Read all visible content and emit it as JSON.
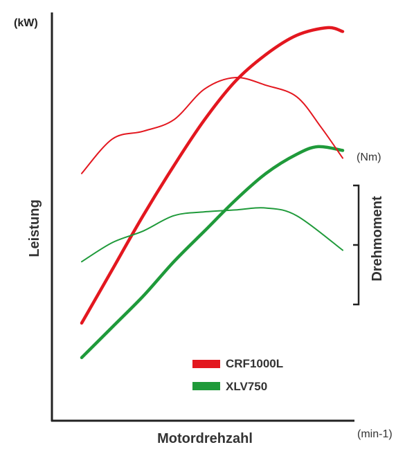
{
  "chart_data": {
    "type": "line",
    "x_axis": {
      "label": "Motordrehzahl",
      "unit": "(min-1)"
    },
    "y_axis_left": {
      "label": "Leistung",
      "unit": "(kW)"
    },
    "y_axis_right": {
      "label": "Drehmoment",
      "unit": "(Nm)"
    },
    "grid": false,
    "ticks": false,
    "legend": {
      "placement": "bottom-right",
      "entries": [
        {
          "name": "CRF1000L",
          "color": "#e3171f"
        },
        {
          "name": "XLV750",
          "color": "#1f9a3a"
        }
      ]
    },
    "series": [
      {
        "name": "CRF1000L",
        "metric": "Leistung",
        "color": "#e3171f",
        "points": [
          [
            0,
            24
          ],
          [
            10,
            38
          ],
          [
            20,
            52
          ],
          [
            30,
            65
          ],
          [
            40,
            77
          ],
          [
            50,
            87
          ],
          [
            60,
            94
          ],
          [
            70,
            99
          ],
          [
            80,
            101
          ],
          [
            85,
            100
          ]
        ]
      },
      {
        "name": "XLV750",
        "metric": "Leistung",
        "color": "#1f9a3a",
        "points": [
          [
            0,
            15
          ],
          [
            10,
            23
          ],
          [
            20,
            31
          ],
          [
            30,
            40
          ],
          [
            40,
            48
          ],
          [
            50,
            56
          ],
          [
            60,
            63
          ],
          [
            70,
            68
          ],
          [
            77,
            70
          ],
          [
            85,
            69
          ]
        ]
      },
      {
        "name": "CRF1000L",
        "metric": "Drehmoment",
        "color": "#e3171f",
        "points": [
          [
            0,
            63
          ],
          [
            10,
            72
          ],
          [
            20,
            74
          ],
          [
            30,
            77
          ],
          [
            40,
            85
          ],
          [
            50,
            88
          ],
          [
            60,
            86
          ],
          [
            70,
            83
          ],
          [
            78,
            75
          ],
          [
            85,
            67
          ]
        ]
      },
      {
        "name": "XLV750",
        "metric": "Drehmoment",
        "color": "#1f9a3a",
        "points": [
          [
            0,
            40
          ],
          [
            10,
            45
          ],
          [
            20,
            48
          ],
          [
            30,
            52
          ],
          [
            40,
            53
          ],
          [
            50,
            53.5
          ],
          [
            60,
            54
          ],
          [
            70,
            52
          ],
          [
            85,
            43
          ]
        ]
      }
    ]
  }
}
